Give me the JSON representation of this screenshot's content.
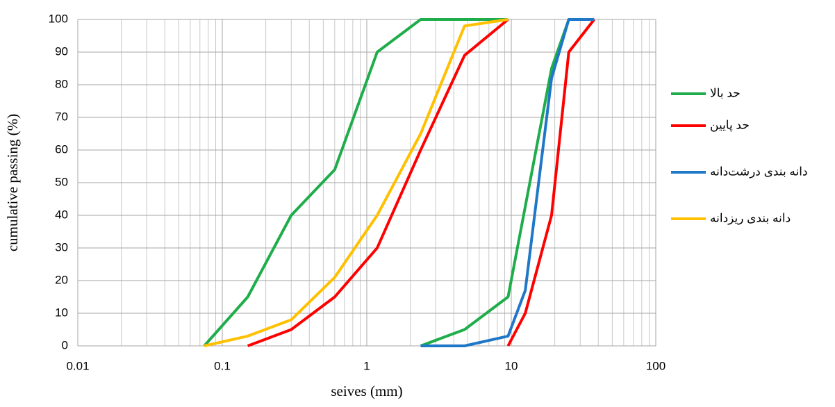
{
  "chart_data": {
    "type": "line",
    "x_label": "seives (mm)",
    "y_label": "cumulative passing (%)",
    "log_x": true,
    "grid": true,
    "minor_grid": true,
    "xlim": [
      0.01,
      100
    ],
    "xticks": [
      0.01,
      0.1,
      1,
      10,
      100
    ],
    "ylim": [
      0,
      100
    ],
    "yticks": [
      0,
      10,
      20,
      30,
      40,
      50,
      60,
      70,
      80,
      90,
      100
    ],
    "legend": "right",
    "series": [
      {
        "name": "حد بالا",
        "color": "#1fad4b",
        "x": [
          0.075,
          0.15,
          0.3,
          0.6,
          1.18,
          2.36,
          9.5,
          null,
          2.36,
          4.75,
          9.5,
          19,
          25
        ],
        "values": [
          0,
          15,
          40,
          54,
          90,
          100,
          100,
          null,
          0,
          5,
          15,
          85,
          100
        ]
      },
      {
        "name": "حد پایین",
        "color": "#ff0000",
        "x": [
          0.15,
          0.3,
          0.6,
          1.18,
          2.36,
          4.75,
          9.5,
          null,
          9.5,
          12.5,
          19,
          25,
          37.5
        ],
        "values": [
          0,
          5,
          15,
          30,
          60,
          89,
          100,
          null,
          0,
          10,
          40,
          90,
          100
        ]
      },
      {
        "name": "دانه بندی درشت‌دانه",
        "color": "#1f77c8",
        "x": [
          2.36,
          4.75,
          9.5,
          12.5,
          19,
          25,
          37.5
        ],
        "values": [
          0,
          0,
          3,
          17,
          82,
          100,
          100
        ]
      },
      {
        "name": "دانه بندی ریزدانه",
        "color": "#ffc000",
        "x": [
          0.075,
          0.15,
          0.3,
          0.6,
          1.18,
          2.36,
          4.75,
          9.5
        ],
        "values": [
          0,
          3,
          8,
          21,
          40,
          65,
          98,
          100
        ]
      }
    ]
  }
}
